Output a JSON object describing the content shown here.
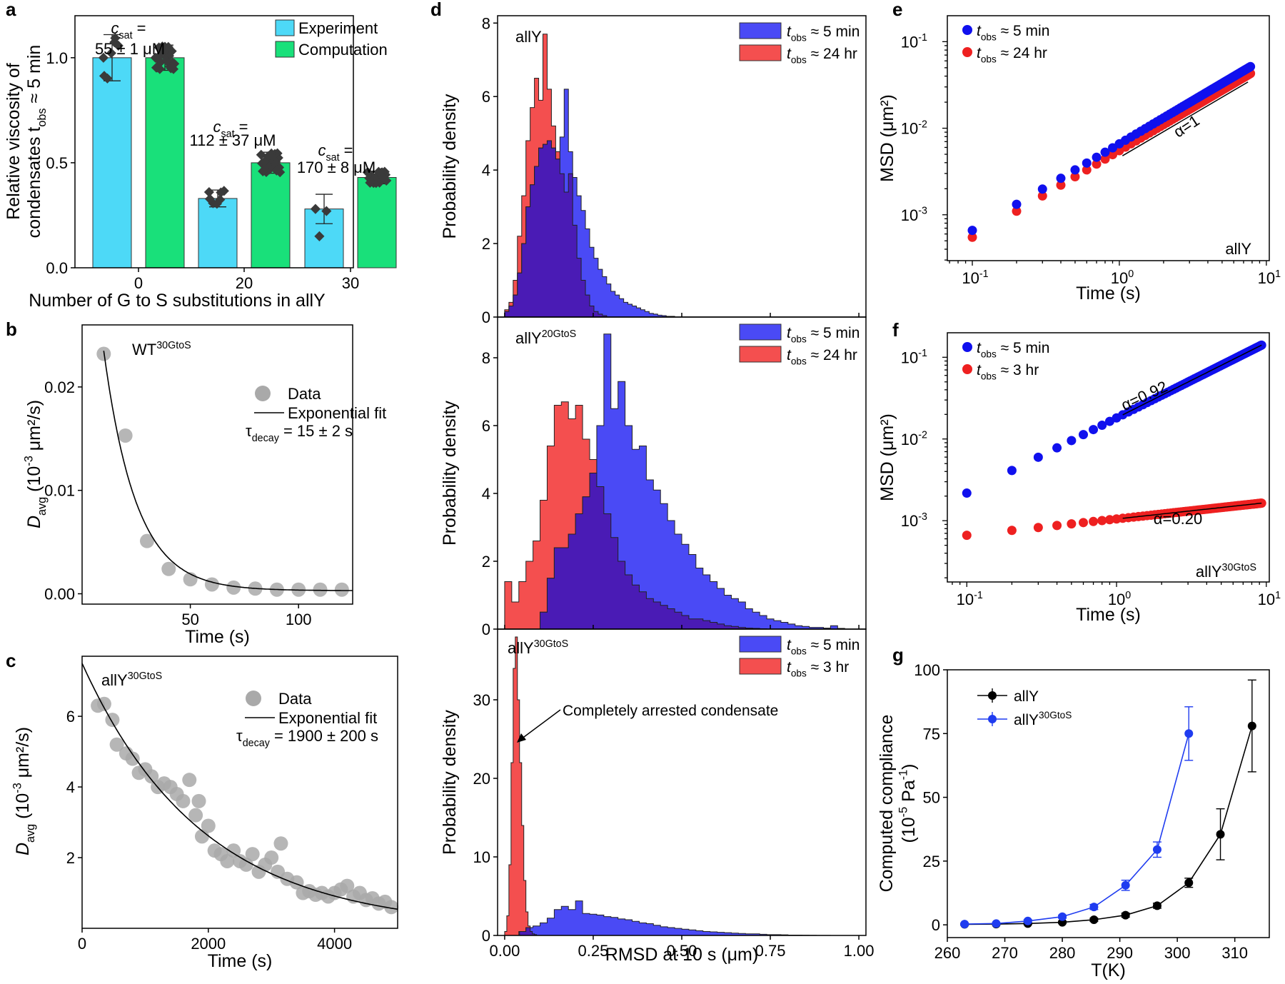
{
  "chart_data": [
    {
      "panel": "a",
      "type": "bar",
      "xlabel": "Number of G to S substitutions in allY",
      "ylabel_lines": [
        "Relative viscosity of",
        "condensates t",
        "obs",
        " ≈ 5 min"
      ],
      "categories": [
        "0",
        "20",
        "30"
      ],
      "ylim": [
        0,
        1.2
      ],
      "yticks": [
        "0.0",
        "0.5",
        "1.0"
      ],
      "series": [
        {
          "name": "Experiment",
          "color": "#4dd9f7",
          "values": [
            1.0,
            0.33,
            0.28
          ],
          "errors": [
            0.11,
            0.04,
            0.07
          ]
        },
        {
          "name": "Computation",
          "color": "#19e07a",
          "values": [
            1.0,
            0.5,
            0.43
          ],
          "errors": [
            0.06,
            0.05,
            0.03
          ]
        }
      ],
      "annotations": [
        {
          "label": "c",
          "sub": "sat",
          "eq": " =",
          "value": "55 ± 1 μM"
        },
        {
          "label": "c",
          "sub": "sat",
          "eq": " =",
          "value": "112 ± 37 μM"
        },
        {
          "label": "c",
          "sub": "sat",
          "eq": " =",
          "value": "170  ± 8 μM"
        }
      ]
    },
    {
      "panel": "b",
      "type": "scatter",
      "title": "WT",
      "title_sup": "30GtoS",
      "xlabel": "Time (s)",
      "ylabel": "D",
      "ylabel_sub": "avg",
      "ylabel_rest": " (10",
      "ylabel_sup": "-3",
      "ylabel_end": " μm²/s)",
      "xlim": [
        0,
        125
      ],
      "ylim": [
        -0.001,
        0.026
      ],
      "xticks": [
        "50",
        "100"
      ],
      "yticks": [
        "0.00",
        "0.01",
        "0.02"
      ],
      "points": [
        [
          10,
          0.0232
        ],
        [
          20,
          0.0153
        ],
        [
          30,
          0.0051
        ],
        [
          40,
          0.0024
        ],
        [
          50,
          0.0014
        ],
        [
          60,
          0.0009
        ],
        [
          70,
          0.0006
        ],
        [
          80,
          0.0005
        ],
        [
          90,
          0.0004
        ],
        [
          100,
          0.0004
        ],
        [
          110,
          0.0004
        ],
        [
          120,
          0.0004
        ]
      ],
      "fit": {
        "A": 0.0232,
        "t0": 10,
        "tau": 15,
        "offset": 0.0003
      },
      "legend": [
        "Data",
        "Exponential fit"
      ],
      "tau_label": "τ",
      "tau_sub": "decay",
      "tau_value": " = 15 ± 2 s"
    },
    {
      "panel": "c",
      "type": "scatter",
      "title": "allY",
      "title_sup": "30GtoS",
      "xlabel": "Time (s)",
      "ylabel": "D",
      "ylabel_sub": "avg",
      "ylabel_rest": " (10",
      "ylabel_sup": "-3",
      "ylabel_end": " μm²/s)",
      "xlim": [
        0,
        5000
      ],
      "ylim": [
        0,
        7.7
      ],
      "xticks": [
        "0",
        "2000",
        "4000"
      ],
      "yticks": [
        "2",
        "4",
        "6"
      ],
      "points": [
        [
          250,
          6.3
        ],
        [
          350,
          6.35
        ],
        [
          480,
          5.9
        ],
        [
          550,
          5.2
        ],
        [
          700,
          4.95
        ],
        [
          800,
          4.8
        ],
        [
          900,
          4.4
        ],
        [
          1000,
          4.5
        ],
        [
          1100,
          4.3
        ],
        [
          1200,
          4.0
        ],
        [
          1300,
          4.1
        ],
        [
          1400,
          4.0
        ],
        [
          1500,
          3.8
        ],
        [
          1600,
          3.6
        ],
        [
          1700,
          4.2
        ],
        [
          1800,
          3.2
        ],
        [
          1850,
          3.6
        ],
        [
          1900,
          2.6
        ],
        [
          2000,
          2.9
        ],
        [
          2100,
          2.2
        ],
        [
          2200,
          2.1
        ],
        [
          2300,
          1.9
        ],
        [
          2400,
          2.2
        ],
        [
          2500,
          1.9
        ],
        [
          2600,
          1.8
        ],
        [
          2700,
          2.1
        ],
        [
          2800,
          1.6
        ],
        [
          2900,
          1.8
        ],
        [
          3000,
          2.0
        ],
        [
          3100,
          1.6
        ],
        [
          3150,
          2.4
        ],
        [
          3250,
          1.4
        ],
        [
          3400,
          1.3
        ],
        [
          3500,
          1.0
        ],
        [
          3600,
          1.05
        ],
        [
          3700,
          0.95
        ],
        [
          3800,
          1.0
        ],
        [
          3900,
          0.9
        ],
        [
          4000,
          1.0
        ],
        [
          4100,
          1.1
        ],
        [
          4200,
          1.2
        ],
        [
          4300,
          0.9
        ],
        [
          4400,
          1.0
        ],
        [
          4500,
          0.8
        ],
        [
          4600,
          0.85
        ],
        [
          4700,
          0.7
        ],
        [
          4800,
          0.75
        ],
        [
          4900,
          0.6
        ]
      ],
      "fit": {
        "A": 7.5,
        "t0": 0,
        "tau": 1900,
        "offset": 0.0
      },
      "legend": [
        "Data",
        "Exponential fit"
      ],
      "tau_label": "τ",
      "tau_sub": "decay",
      "tau_value": " = 1900 ± 200 s"
    },
    {
      "panel": "d",
      "type": "histogram",
      "xlabel": "RMSD at 10 s (μm)",
      "ylabel": "Probability density",
      "xlim": [
        -0.02,
        1.02
      ],
      "xticks": [
        "0.00",
        "0.25",
        "0.50",
        "0.75",
        "1.00"
      ],
      "subpanels": [
        {
          "title": "allY",
          "title_sup": "",
          "ylim": [
            0,
            8.2
          ],
          "yticks": [
            "0",
            "2",
            "4",
            "6",
            "8"
          ],
          "series": [
            {
              "name_t": "t",
              "name_sub": "obs",
              "name_rest": " ≈ 5 min",
              "color": "#4a4af5",
              "bin_width": 0.012,
              "values": [
                0.15,
                0.3,
                0.6,
                1.2,
                2.0,
                3.0,
                3.6,
                4.1,
                4.6,
                4.7,
                4.8,
                4.6,
                4.3,
                4.9,
                6.2,
                4.5,
                3.8,
                3.3,
                2.9,
                2.4,
                1.9,
                1.6,
                1.3,
                1.1,
                0.9,
                0.7,
                0.6,
                0.5,
                0.4,
                0.35,
                0.3,
                0.25,
                0.2,
                0.15,
                0.1,
                0.08,
                0.05,
                0.04,
                0.02,
                0.02
              ]
            },
            {
              "name_t": "t",
              "name_sub": "obs",
              "name_rest": " ≈ 24 hr",
              "color": "#f44f4f",
              "bin_width": 0.012,
              "values": [
                0.2,
                0.4,
                1.0,
                2.2,
                3.3,
                4.8,
                5.7,
                6.5,
                5.9,
                7.7,
                6.2,
                5.2,
                4.5,
                3.9,
                3.4,
                3.9,
                2.5,
                1.6,
                1.0,
                0.6,
                0.3,
                0.15,
                0.08,
                0.04
              ]
            }
          ]
        },
        {
          "title": "allY",
          "title_sup": "20GtoS",
          "ylim": [
            0,
            9.2
          ],
          "yticks": [
            "0",
            "2",
            "4",
            "6",
            "8"
          ],
          "series": [
            {
              "name_t": "t",
              "name_sub": "obs",
              "name_rest": " ≈ 5 min",
              "color": "#4a4af5",
              "bin_width": 0.02,
              "values": [
                0.0,
                0.0,
                0.0,
                0.0,
                0.0,
                0.5,
                1.5,
                2.4,
                2.4,
                2.8,
                3.4,
                3.9,
                4.6,
                6.0,
                8.7,
                6.5,
                7.3,
                6.0,
                5.3,
                5.4,
                4.4,
                4.1,
                3.7,
                3.2,
                2.8,
                2.5,
                2.2,
                1.8,
                1.6,
                1.4,
                1.2,
                1.0,
                0.9,
                0.8,
                0.6,
                0.5,
                0.4,
                0.3,
                0.25,
                0.2,
                0.15,
                0.1,
                0.08,
                0.05,
                0.05,
                0.03,
                0.1,
                0.02,
                0.0,
                0.0
              ]
            },
            {
              "name_t": "t",
              "name_sub": "obs",
              "name_rest": " ≈ 24 hr",
              "color": "#f44f4f",
              "bin_width": 0.02,
              "values": [
                1.4,
                0.8,
                1.4,
                2.0,
                2.6,
                3.8,
                5.4,
                6.6,
                6.7,
                6.2,
                6.6,
                5.6,
                5.0,
                4.2,
                3.4,
                2.7,
                2.0,
                1.6,
                1.3,
                1.1,
                0.9,
                0.8,
                0.7,
                0.6,
                0.5,
                0.4,
                0.3,
                0.3,
                0.25,
                0.2,
                0.15,
                0.1,
                0.08,
                0.05,
                0.03,
                0.02,
                0.01
              ]
            }
          ]
        },
        {
          "title": "allY",
          "title_sup": "30GtoS",
          "ylim": [
            0,
            39
          ],
          "yticks": [
            "0",
            "10",
            "20",
            "30"
          ],
          "series": [
            {
              "name_t": "t",
              "name_sub": "obs",
              "name_rest": " ≈ 5 min",
              "color": "#4a4af5",
              "bin_width": 0.02,
              "values": [
                0.0,
                0.0,
                0.5,
                1.0,
                1.2,
                1.6,
                2.2,
                3.3,
                3.7,
                3.3,
                4.4,
                2.8,
                2.7,
                2.6,
                2.4,
                2.3,
                2.1,
                2.0,
                1.8,
                1.6,
                1.5,
                1.3,
                1.1,
                1.0,
                0.9,
                0.8,
                0.7,
                0.6,
                0.5,
                0.45,
                0.4,
                0.35,
                0.3,
                0.25,
                0.2,
                0.2,
                0.15,
                0.1,
                0.1,
                0.08,
                0.05,
                0.04,
                0.03,
                0.02,
                0.01,
                0.01
              ]
            },
            {
              "name_t": "t",
              "name_sub": "obs",
              "name_rest": " ≈ 3 hr",
              "color": "#f44f4f",
              "bin_width": 0.006,
              "values": [
                0.5,
                2.5,
                9.0,
                22.0,
                34.0,
                38.0,
                30.0,
                22.0,
                14.0,
                7.0,
                3.0,
                1.2,
                0.5,
                0.2,
                0.1
              ]
            }
          ],
          "annotation": "Completely arrested condensate"
        }
      ]
    },
    {
      "panel": "e",
      "type": "scatter",
      "scale": "log-log",
      "title": "allY",
      "title_sup": "",
      "xlabel": "Time (s)",
      "ylabel": "MSD (μm²)",
      "xlim_log": [
        -1.17,
        1.02
      ],
      "ylim_log": [
        -3.53,
        -0.7
      ],
      "xticks": [
        {
          "base": "10",
          "exp": "-1"
        },
        {
          "base": "10",
          "exp": "0"
        },
        {
          "base": "10",
          "exp": "1"
        }
      ],
      "yticks": [
        {
          "base": "10",
          "exp": "-3"
        },
        {
          "base": "10",
          "exp": "-2"
        },
        {
          "base": "10",
          "exp": "-1"
        }
      ],
      "series": [
        {
          "name_t": "t",
          "name_sub": "obs",
          "name_rest": " ≈ 5 min",
          "color": "#1010ee",
          "a": 0.0066,
          "alpha": 1.0,
          "c": 0,
          "t_max": 7.8
        },
        {
          "name_t": "t",
          "name_sub": "obs",
          "name_rest": " ≈ 24 hr",
          "color": "#ee2020",
          "a": 0.0055,
          "alpha": 1.0,
          "c": 0,
          "t_max": 7.8
        }
      ],
      "slope_label": "α=1"
    },
    {
      "panel": "f",
      "type": "scatter",
      "scale": "log-log",
      "title": "allY",
      "title_sup": "30GtoS",
      "xlabel": "Time (s)",
      "ylabel": "MSD (μm²)",
      "xlim_log": [
        -1.13,
        1.02
      ],
      "ylim_log": [
        -3.75,
        -0.7
      ],
      "xticks": [
        {
          "base": "10",
          "exp": "-1"
        },
        {
          "base": "10",
          "exp": "0"
        },
        {
          "base": "10",
          "exp": "1"
        }
      ],
      "yticks": [
        {
          "base": "10",
          "exp": "-3"
        },
        {
          "base": "10",
          "exp": "-2"
        },
        {
          "base": "10",
          "exp": "-1"
        }
      ],
      "series": [
        {
          "name_t": "t",
          "name_sub": "obs",
          "name_rest": " ≈ 5 min",
          "color": "#1010ee",
          "a": 0.0181,
          "alpha": 0.92,
          "c": 0,
          "t_max": 9.3
        },
        {
          "name_t": "t",
          "name_sub": "obs",
          "name_rest": " ≈ 3 hr",
          "color": "#ee2020",
          "a": 0.00105,
          "alpha": 0.2,
          "c": 0,
          "t_max": 9.3
        }
      ],
      "fit_labels": [
        "α=0.92",
        "α=0.20"
      ]
    },
    {
      "panel": "g",
      "type": "line",
      "xlabel": "T(K)",
      "ylabel_lines": [
        "Computed compliance",
        "(10",
        "-5",
        " Pa",
        "-1",
        ")"
      ],
      "xlim": [
        260,
        316
      ],
      "ylim": [
        -5,
        100
      ],
      "xticks": [
        "260",
        "270",
        "280",
        "290",
        "300",
        "310"
      ],
      "yticks": [
        "0",
        "25",
        "50",
        "75",
        "100"
      ],
      "series": [
        {
          "name": "allY",
          "name_sup": "",
          "color": "#000000",
          "x": [
            263,
            268.5,
            274,
            280,
            285.5,
            291,
            296.5,
            302,
            307.5,
            313
          ],
          "y": [
            0.2,
            0.3,
            0.5,
            1.0,
            2.0,
            3.8,
            7.5,
            16.5,
            35.5,
            78.0
          ],
          "err": [
            0.3,
            0.3,
            0.4,
            0.4,
            0.6,
            0.8,
            1.0,
            1.8,
            10.0,
            18.0
          ]
        },
        {
          "name": "allY",
          "name_sup": "30GtoS",
          "color": "#1f3cf0",
          "x": [
            263,
            268.5,
            274,
            280,
            285.5,
            291,
            296.5,
            302
          ],
          "y": [
            0.3,
            0.5,
            1.5,
            3.2,
            7.0,
            15.5,
            29.5,
            75.0
          ],
          "err": [
            0.3,
            0.3,
            0.5,
            0.6,
            1.0,
            2.0,
            3.0,
            10.5
          ]
        }
      ]
    }
  ],
  "panel_labels": [
    "a",
    "b",
    "c",
    "d",
    "e",
    "f",
    "g"
  ]
}
